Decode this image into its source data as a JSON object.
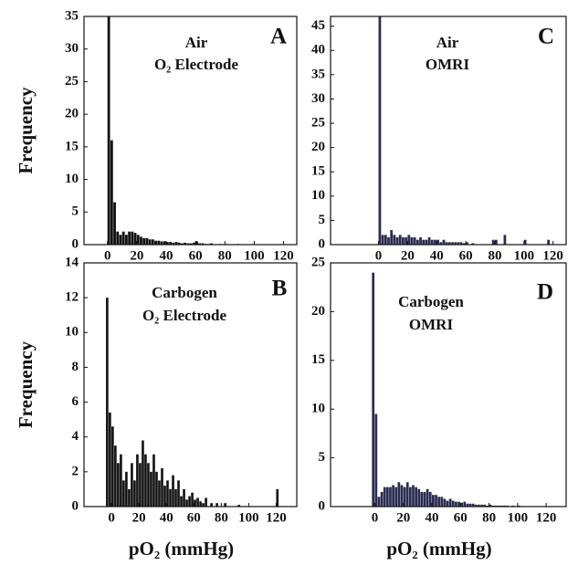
{
  "chart_data": [
    {
      "type": "histogram",
      "panel_label": "A",
      "title": "Air",
      "subtitle": "O₂ Electrode",
      "ylabel": "Frequency",
      "color": "#111111",
      "bins": [
        0,
        2,
        4,
        6,
        8,
        10,
        12,
        14,
        16,
        18,
        20,
        22,
        24,
        26,
        28,
        30,
        32,
        34,
        36,
        38,
        40,
        42,
        44,
        46,
        48,
        50,
        52,
        54,
        56,
        58,
        60,
        62,
        64,
        66,
        68,
        70,
        72,
        74,
        76,
        78,
        80,
        82,
        84,
        86,
        88,
        90
      ],
      "values": [
        35,
        16,
        6.5,
        2,
        1.5,
        2,
        1.5,
        2,
        2,
        1.8,
        1.5,
        1.2,
        1,
        1,
        0.8,
        0.8,
        0.6,
        0.6,
        0.5,
        0.5,
        0.4,
        0.4,
        0.3,
        0.4,
        0.3,
        0.2,
        0.3,
        0.2,
        0.2,
        0.3,
        0.5,
        0.2,
        0.2,
        0.1,
        0.1,
        0.2,
        0,
        0,
        0.1,
        0,
        0.1,
        0,
        0,
        0,
        0.1
      ],
      "xlim": [
        -16,
        129
      ],
      "xticks": [
        0,
        20,
        40,
        60,
        80,
        100,
        120
      ],
      "ylim": [
        0,
        35
      ],
      "yticks": [
        0,
        5,
        10,
        15,
        20,
        25,
        30,
        35
      ]
    },
    {
      "type": "histogram",
      "panel_label": "B",
      "title": "Carbogen",
      "subtitle": "O₂ Electrode",
      "ylabel": "Frequency",
      "xlabel": "pO₂ (mmHg)",
      "color": "#111111",
      "bins": [
        -4,
        -2,
        0,
        2,
        4,
        6,
        8,
        10,
        12,
        14,
        16,
        18,
        20,
        22,
        24,
        26,
        28,
        30,
        32,
        34,
        36,
        38,
        40,
        42,
        44,
        46,
        48,
        50,
        52,
        54,
        56,
        58,
        60,
        62,
        64,
        66,
        68,
        70,
        72,
        74,
        76,
        78,
        80,
        82,
        84,
        86,
        88,
        90,
        92,
        94,
        96,
        98,
        100,
        102,
        104,
        106,
        108,
        110,
        112,
        114,
        116,
        118,
        120,
        122
      ],
      "values": [
        12,
        5.4,
        4.6,
        3.5,
        2.5,
        3,
        1.5,
        2,
        1,
        2.5,
        1.5,
        3,
        2.5,
        3.8,
        3,
        2.5,
        2,
        3,
        2,
        1.5,
        2.2,
        1.2,
        1.5,
        1,
        1.8,
        1,
        1.5,
        0.6,
        1,
        0.4,
        0.6,
        0.8,
        0.4,
        0.5,
        0.3,
        0.2,
        0.5,
        0,
        0.2,
        0,
        0.2,
        0,
        0,
        0.2,
        0,
        0,
        0,
        0,
        0.1,
        0,
        0,
        0,
        0,
        0,
        0,
        0,
        0,
        0,
        0,
        0,
        0,
        0,
        1
      ],
      "xlim": [
        -20,
        135
      ],
      "xticks": [
        0,
        20,
        40,
        60,
        80,
        100,
        120
      ],
      "ylim": [
        0,
        14
      ],
      "yticks": [
        0,
        2,
        4,
        6,
        8,
        10,
        12,
        14
      ]
    },
    {
      "type": "histogram",
      "panel_label": "C",
      "title": "Air",
      "subtitle": "OMRI",
      "color": "#2c2c52",
      "bins": [
        0,
        2,
        4,
        6,
        8,
        10,
        12,
        14,
        16,
        18,
        20,
        22,
        24,
        26,
        28,
        30,
        32,
        34,
        36,
        38,
        40,
        42,
        44,
        46,
        48,
        50,
        52,
        54,
        56,
        58,
        60,
        62,
        64,
        66,
        68,
        70,
        72,
        74,
        76,
        78,
        80,
        82,
        84,
        86,
        88,
        90,
        92,
        94,
        96,
        98,
        100,
        102,
        104,
        106,
        108,
        110,
        112,
        114,
        116,
        118,
        120
      ],
      "values": [
        47,
        2,
        2,
        1.5,
        3,
        2,
        1.5,
        2,
        1.5,
        1.5,
        2,
        1.5,
        1.5,
        1,
        1.5,
        1,
        1,
        1.5,
        1,
        1,
        1,
        0.5,
        1,
        0.5,
        0.5,
        0.5,
        0.5,
        0.5,
        0.5,
        0.3,
        0.5,
        0,
        0.3,
        0,
        0,
        0,
        0,
        0,
        0,
        1,
        1,
        0,
        0,
        2,
        0,
        0,
        0,
        0,
        0,
        0,
        1,
        0,
        0,
        0,
        0,
        0,
        0,
        0,
        1,
        0
      ],
      "xlim": [
        -33,
        129
      ],
      "xticks": [
        0,
        20,
        40,
        60,
        80,
        100,
        120
      ],
      "ylim": [
        0,
        47
      ],
      "yticks": [
        0,
        5,
        10,
        15,
        20,
        25,
        30,
        35,
        40,
        45
      ]
    },
    {
      "type": "histogram",
      "panel_label": "D",
      "title": "Carbogen",
      "subtitle": "OMRI",
      "xlabel": "pO₂ (mmHg)",
      "color": "#2c2c52",
      "bins": [
        -2,
        0,
        2,
        4,
        6,
        8,
        10,
        12,
        14,
        16,
        18,
        20,
        22,
        24,
        26,
        28,
        30,
        32,
        34,
        36,
        38,
        40,
        42,
        44,
        46,
        48,
        50,
        52,
        54,
        56,
        58,
        60,
        62,
        64,
        66,
        68,
        70,
        72,
        74,
        76,
        78,
        80,
        82,
        84,
        86,
        88,
        90,
        92,
        94,
        96,
        98,
        100,
        102,
        104,
        106,
        108,
        110,
        112,
        114,
        116,
        118,
        120
      ],
      "values": [
        24,
        9.5,
        1,
        1.5,
        2,
        2,
        2,
        2.2,
        2,
        2.5,
        2.2,
        2,
        2.5,
        2,
        2.2,
        2,
        1.8,
        1.5,
        1.5,
        1.8,
        1.5,
        1.2,
        1.2,
        1,
        1,
        0.8,
        0.6,
        0.8,
        0.6,
        0.5,
        0.5,
        0.4,
        0.5,
        0.3,
        0.3,
        0.3,
        0.2,
        0.2,
        0.2,
        0.2,
        0.1,
        0.2,
        0.1,
        0.1,
        0.1,
        0.1,
        0.1,
        0.1,
        0,
        0.1,
        0,
        0.1,
        0,
        0,
        0,
        0,
        0,
        0,
        0,
        0,
        0
      ],
      "xlim": [
        -31,
        134
      ],
      "xticks": [
        0,
        20,
        40,
        60,
        80,
        100,
        120
      ],
      "ylim": [
        0,
        25
      ],
      "yticks": [
        0,
        5,
        10,
        15,
        20,
        25
      ]
    }
  ]
}
